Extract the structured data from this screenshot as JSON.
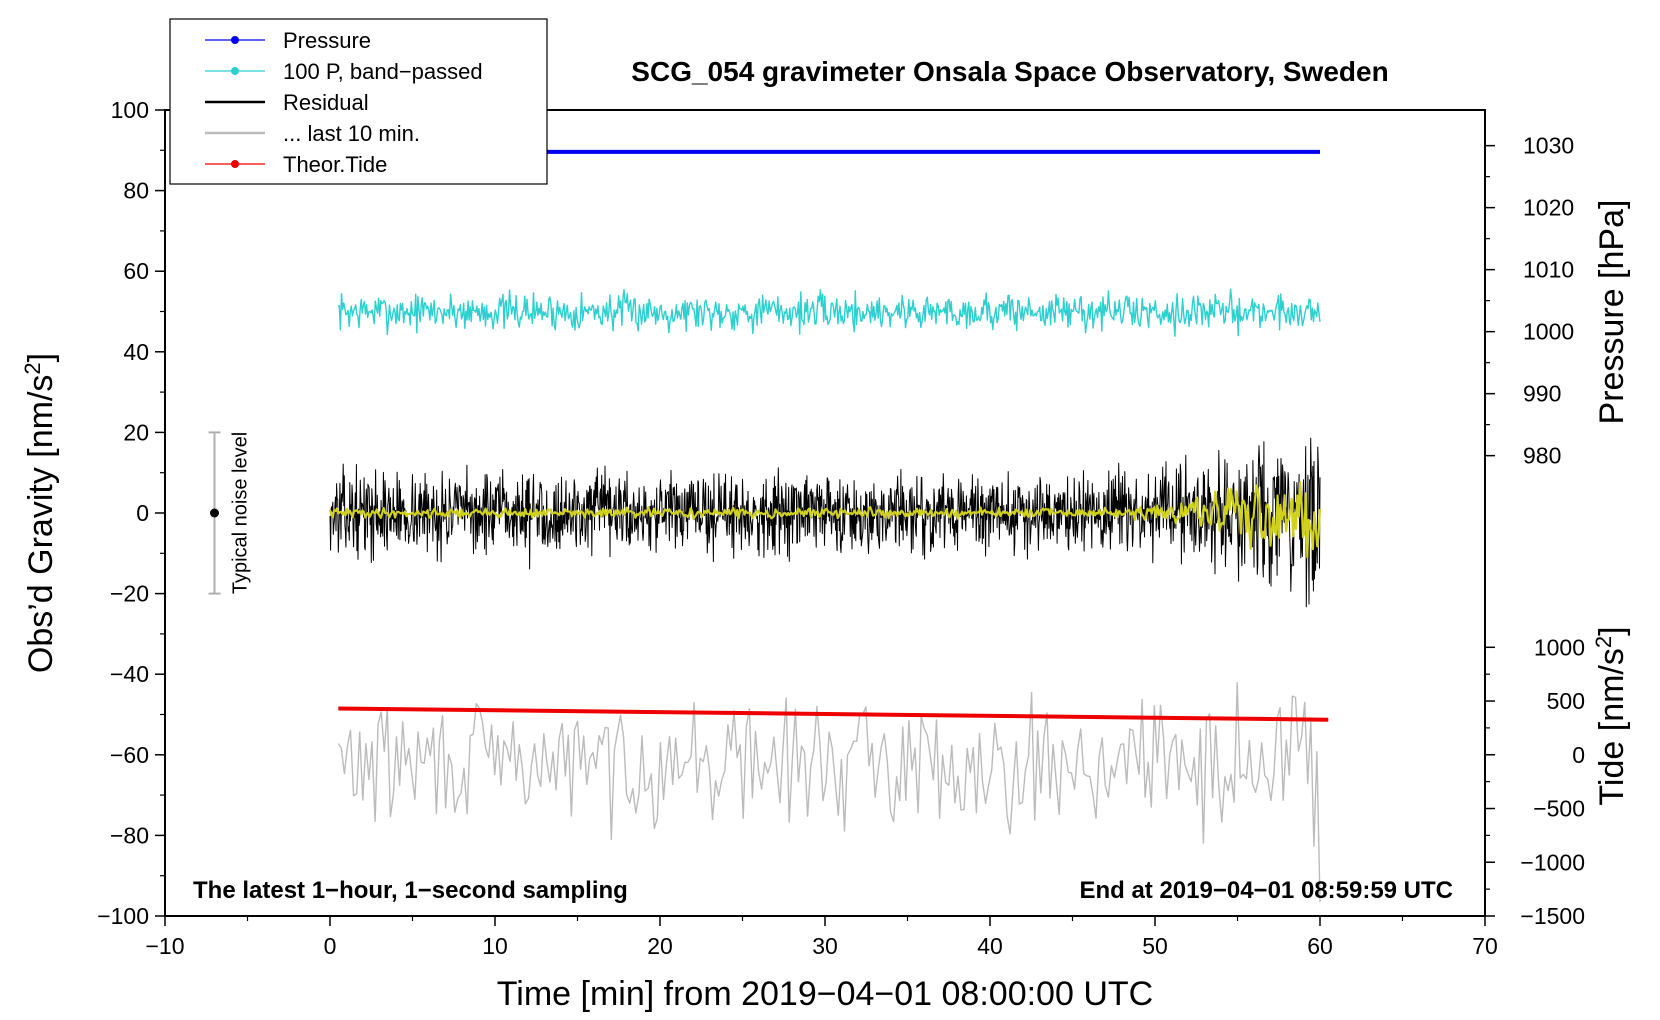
{
  "chart_data": {
    "type": "line",
    "title": "SCG_054 gravimeter Onsala Space Observatory, Sweden",
    "xlabel": "Time [min] from 2019−04−01 08:00:00 UTC",
    "ylabel": "Obs’d Gravity [nm/s",
    "ylabel_sup": "2",
    "ylabel_close": "]",
    "right_pressure_label": "Pressure [hPa]",
    "right_tide_label": "Tide [nm/s",
    "right_tide_sup": "2",
    "right_tide_close": "]",
    "xlim": [
      -10,
      70
    ],
    "ylim": [
      -100,
      100
    ],
    "x_ticks": [
      -10,
      0,
      10,
      20,
      30,
      40,
      50,
      60,
      70
    ],
    "x_tick_labels": [
      "−10",
      "0",
      "10",
      "20",
      "30",
      "40",
      "50",
      "60",
      "70"
    ],
    "y_ticks": [
      -100,
      -80,
      -60,
      -40,
      -20,
      0,
      20,
      40,
      60,
      80,
      100
    ],
    "y_tick_labels": [
      "−100",
      "−80",
      "−60",
      "−40",
      "−20",
      "0",
      "20",
      "40",
      "60",
      "80",
      "100"
    ],
    "pressure_axis": {
      "ticks": [
        980,
        990,
        1000,
        1010,
        1020,
        1030
      ],
      "tick_labels": [
        "980",
        "990",
        "1000",
        "1010",
        "1020",
        "1030"
      ],
      "ref_value": 1000,
      "ref_gravity": 45,
      "gravity_per_unit": 1.5385
    },
    "tide_axis": {
      "ticks": [
        -1500,
        -1000,
        -500,
        0,
        500,
        1000
      ],
      "tick_labels": [
        "−1500",
        "−1000",
        "−500",
        "0",
        "500",
        "1000"
      ],
      "ref_value": -1500,
      "ref_gravity": -100,
      "gravity_per_unit": 0.02667
    },
    "series": [
      {
        "name": "Pressure",
        "color": "#0000ee",
        "style": "flat",
        "x_range": [
          0,
          60
        ],
        "y_start": 89.6,
        "y_end": 89.6
      },
      {
        "name": "100 P, band−passed",
        "color": "#2ecfcf",
        "style": "noise",
        "x_range": [
          0.5,
          60
        ],
        "center": 50,
        "spread": 2.8,
        "seed": 7
      },
      {
        "name": "Residual",
        "color": "#000000",
        "style": "noise",
        "x_range": [
          0,
          60
        ],
        "center": 0,
        "spread": 6,
        "spread_end": 14,
        "seed": 13
      },
      {
        "name": "... last 10 min.",
        "color": "#bbbbbb",
        "style": "noise",
        "x_range": [
          0.5,
          60
        ],
        "center": -62,
        "spread": 9,
        "spread_end": 17,
        "seed": 29
      },
      {
        "name": "Theor.Tide",
        "color": "#ee0000",
        "style": "flat",
        "x_range": [
          0.5,
          60.5
        ],
        "y_start": -48.5,
        "y_end": -51.3
      },
      {
        "name": "smoothed residual",
        "color": "#d0d01e",
        "style": "noise",
        "x_range": [
          0,
          60
        ],
        "center": 0,
        "spread": 0.7,
        "spread_end": 8,
        "seed": 41,
        "in_legend": false
      }
    ],
    "noise_bar": {
      "x": -7,
      "y": 0,
      "half_range": 20,
      "label": "Typical noise level"
    },
    "annotations": {
      "bottom_left": "The latest 1−hour, 1−second sampling",
      "bottom_right": "End at 2019−04−01 08:59:59 UTC"
    },
    "legend_position": "top-left"
  }
}
